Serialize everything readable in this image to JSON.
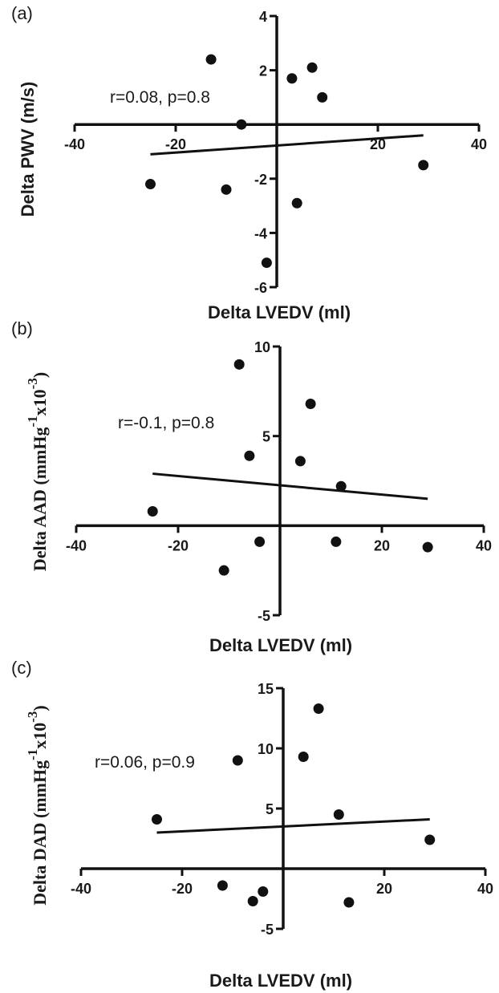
{
  "chart_data": [
    {
      "panel": "(a)",
      "type": "scatter",
      "xlabel": "Delta LVEDV (ml)",
      "ylabel": "Delta PWV (m/s)",
      "xlim": [
        -40,
        40
      ],
      "ylim": [
        -6,
        4
      ],
      "xticks": [
        -40,
        -20,
        20,
        40
      ],
      "yticks": [
        4,
        2,
        -2,
        -4,
        -6
      ],
      "annotation": "r=0.08, p=0.8",
      "points": [
        [
          -25,
          -2.2
        ],
        [
          -13,
          2.4
        ],
        [
          -10,
          -2.4
        ],
        [
          -7,
          0
        ],
        [
          -2,
          -5.1
        ],
        [
          3,
          1.7
        ],
        [
          4,
          -2.9
        ],
        [
          7,
          2.1
        ],
        [
          9,
          1
        ],
        [
          29,
          -1.5
        ]
      ],
      "fit_line": {
        "x": [
          -25,
          29
        ],
        "y": [
          -1.1,
          -0.4
        ]
      },
      "grid": false
    },
    {
      "panel": "(b)",
      "type": "scatter",
      "xlabel": "Delta LVEDV (ml)",
      "ylabel": "Delta AAD (mmHg",
      "ylabel_sup": "-1",
      "ylabel_mid": "x10",
      "ylabel_sup2": "-3",
      "ylabel_end": ")",
      "xlim": [
        -40,
        40
      ],
      "ylim": [
        -5,
        10
      ],
      "xticks": [
        -40,
        -20,
        20,
        40
      ],
      "yticks": [
        10,
        5,
        -5
      ],
      "annotation": "r=-0.1, p=0.8",
      "points": [
        [
          -25,
          0.8
        ],
        [
          -11,
          -2.5
        ],
        [
          -8,
          9
        ],
        [
          -6,
          3.9
        ],
        [
          -4,
          -0.9
        ],
        [
          4,
          3.6
        ],
        [
          6,
          6.8
        ],
        [
          11,
          -0.9
        ],
        [
          12,
          2.2
        ],
        [
          29,
          -1.2
        ]
      ],
      "fit_line": {
        "x": [
          -25,
          29
        ],
        "y": [
          2.9,
          1.5
        ]
      },
      "grid": false
    },
    {
      "panel": "(c)",
      "type": "scatter",
      "xlabel": "Delta LVEDV (ml)",
      "ylabel": "Delta DAD (mmHg",
      "ylabel_sup": "-1",
      "ylabel_mid": "x10",
      "ylabel_sup2": "-3",
      "ylabel_end": ")",
      "xlim": [
        -40,
        40
      ],
      "ylim": [
        -5,
        15
      ],
      "xticks": [
        -40,
        -20,
        20,
        40
      ],
      "yticks": [
        15,
        10,
        5,
        -5
      ],
      "annotation": "r=0.06, p=0.9",
      "points": [
        [
          -25,
          4.1
        ],
        [
          -12,
          -1.4
        ],
        [
          -9,
          9
        ],
        [
          -6,
          -2.7
        ],
        [
          -4,
          -1.9
        ],
        [
          4,
          9.3
        ],
        [
          7,
          13.3
        ],
        [
          11,
          4.5
        ],
        [
          13,
          -2.8
        ],
        [
          29,
          2.4
        ]
      ],
      "fit_line": {
        "x": [
          -25,
          29
        ],
        "y": [
          3,
          4.1
        ]
      },
      "grid": false
    }
  ]
}
